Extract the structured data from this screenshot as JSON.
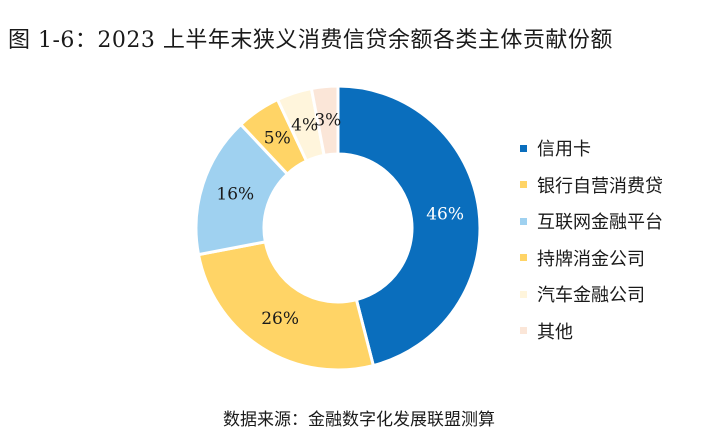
{
  "title": "图 1-6：2023 上半年末狭义消费信贷余额各类主体贡献份额",
  "source": "数据来源：金融数字化发展联盟测算",
  "chart_data": {
    "type": "pie",
    "donut": true,
    "start_angle_deg": 0,
    "direction": "clockwise",
    "categories": [
      "信用卡",
      "银行自营消费贷",
      "互联网金融平台",
      "持牌消金公司",
      "汽车金融公司",
      "其他"
    ],
    "values": [
      46,
      26,
      16,
      5,
      4,
      3
    ],
    "labels": [
      "46%",
      "26%",
      "16%",
      "5%",
      "4%",
      "3%"
    ],
    "colors": [
      "#0a6ebd",
      "#ffd466",
      "#9fd1f0",
      "#ffd466",
      "#fff5dc",
      "#fbe6d8"
    ],
    "label_colors": [
      "#ffffff",
      "#1a1a1a",
      "#1a1a1a",
      "#1a1a1a",
      "#1a1a1a",
      "#1a1a1a"
    ],
    "legend_position": "right"
  }
}
